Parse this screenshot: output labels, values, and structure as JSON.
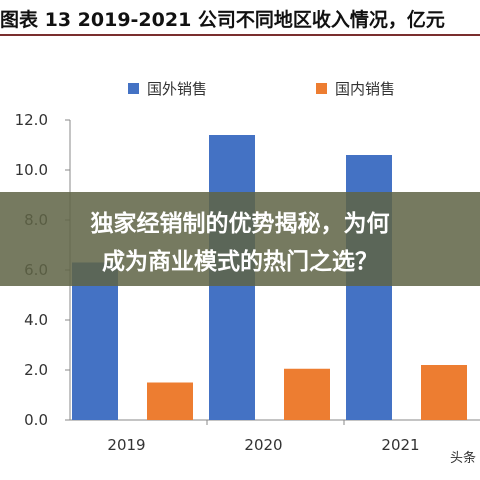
{
  "header": {
    "title": "图表 13 2019-2021 公司不同地区收入情况，亿元"
  },
  "banner": {
    "line1": "独家经销制的优势揭秘，为何",
    "line2": "成为商业模式的热门之选？"
  },
  "watermark": "头条",
  "colors": {
    "foreign": "#4472C4",
    "domestic": "#ED7D31",
    "axis": "#888888"
  },
  "chart_data": {
    "type": "bar",
    "title": "",
    "xlabel": "",
    "ylabel": "",
    "categories": [
      "2019",
      "2020",
      "2021"
    ],
    "series": [
      {
        "name": "国外销售",
        "values": [
          6.3,
          11.4,
          10.6
        ]
      },
      {
        "name": "国内销售",
        "values": [
          1.5,
          2.05,
          2.2
        ]
      }
    ],
    "ylim": [
      0,
      12
    ],
    "yticks": [
      "0.0",
      "2.0",
      "4.0",
      "6.0",
      "8.0",
      "10.0",
      "12.0"
    ],
    "legend_position": "top",
    "grid": false
  }
}
